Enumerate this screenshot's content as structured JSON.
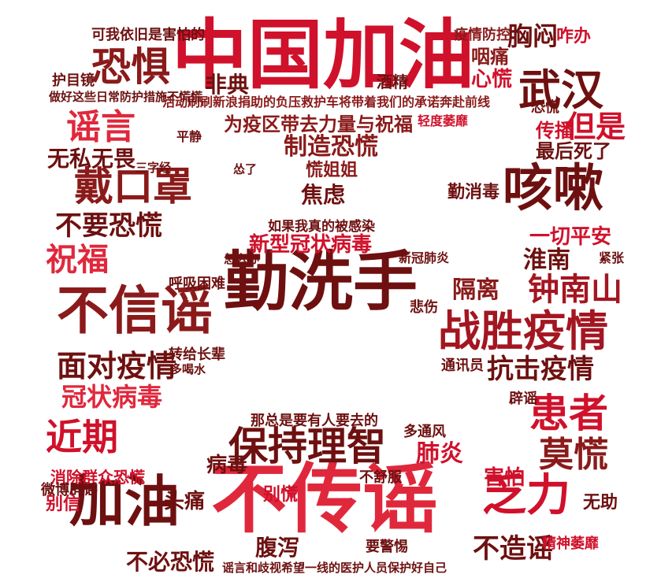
{
  "colors": {
    "background": "#ffffff",
    "palette": [
      "#d0112b",
      "#8b1a1a",
      "#b22222",
      "#e0283c",
      "#6e1010",
      "#c0392b",
      "#a31621"
    ]
  },
  "words": {
    "zhongguo_jiayou": "中国加油",
    "qin_xi_shou": "勤洗手",
    "bu_xin_yao": "不信谣",
    "bu_chuan_yao": "不传谣",
    "zhan_sheng_yi_qing": "战胜疫情",
    "jia_you": "加油",
    "ke_sou": "咳嗽",
    "dai_kou_zhao": "戴口罩",
    "kong_ju": "恐惧",
    "wu_han": "武汉",
    "yao_yan": "谣言",
    "zhu_fu": "祝福",
    "jin_qi": "近期",
    "bao_chi_li_zhi": "保持理智",
    "fa_li": "乏力",
    "huan_zhe": "患者",
    "mo_huang": "莫慌",
    "kang_ji_yi_qing": "抗击疫情",
    "zhong_nan_shan": "钟南山",
    "mian_dui_yi_qing": "面对疫情",
    "guan_zhuang_bing_du": "冠状病毒",
    "xin_xing_guan_zhuang": "新型冠状病毒",
    "zhi_zao_kong_huang": "制造恐慌",
    "jiao_lv": "焦虑",
    "wei_yi_qu": "为疫区带去力量与祝福",
    "bu_yao_kong_huang": "不要恐慌",
    "wu_si_wu_wei": "无私无畏",
    "fei_dian": "非典",
    "dan_shi": "但是",
    "xiong_men": "胸闷",
    "yan_tong": "咽痛",
    "xin_huang": "心慌",
    "zhun_nan": "淮南",
    "ge_li": "隔离",
    "yi_qie_ping_an": "一切平安",
    "fei_yan": "肺炎",
    "bing_du": "病毒",
    "tou_tong": "头痛",
    "fu_xie": "腹泻",
    "bu_zao_yao": "不造谣",
    "bu_bi_kong_huang": "不必恐慌",
    "huang_jie_jie": "慌姐姐",
    "huo_dong": "活动刷刷新浪捐助的负压救护车将带着我们的承诺奔赴前线",
    "ke_yi": "可我依旧是害怕的",
    "zuo_hao": "做好这些日常防护措施不慌慌",
    "zui_hou": "最后死了",
    "hai_pa": "害怕",
    "qin_xiao_du": "勤消毒",
    "chuan_bo": "传播",
    "ze_ban": "咋办",
    "yi_qing_fang_kong": "疫情防控",
    "ru_guo": "如果我真的被感染",
    "hu_xi_kun_nan": "呼吸困难",
    "zong_shi_yao": "那总是要有人要去的",
    "bie_huang": "别慌",
    "xiao_chu": "消除群众恐慌",
    "wei_bo": "微博辟谣",
    "ye_shi_yi": "谣言和歧视希望一线的医护人员保护好自己",
    "jiu_jin": "酒精",
    "ping_jing": "平静",
    "wu_zhu": "无助",
    "jing_shen_wei_mi": "精神萎靡",
    "bei_shang": "悲伤",
    "hu_mu_jing": "护目镜",
    "duo_tong_feng": "多通风",
    "bu_shu_fu": "不舒服",
    "yao_jing_ti": "要警惕",
    "zhuan_gei": "转给长辈",
    "duo_he_shui": "多喝水",
    "song_le": "怂了",
    "zen_me_ban": "怎么办",
    "bie_xin": "别信",
    "tong_xun_yuan": "通讯员",
    "pi_yao": "辟谣",
    "san_zi_jing": "三字经",
    "jin_zhang": "紧张",
    "qing_du_wei_nan": "轻度萎靡",
    "xin_guan_fei_yan": "新冠肺炎",
    "kong_huang": "恐慌"
  }
}
